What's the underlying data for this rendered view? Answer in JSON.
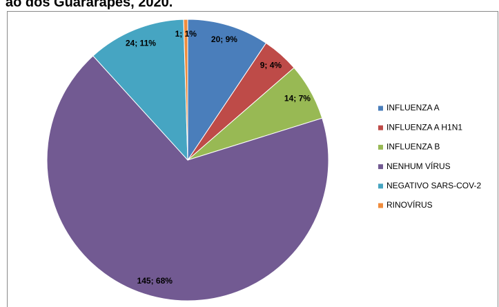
{
  "chart_data": {
    "type": "pie",
    "title": "ão dos Guararapes, 2020.",
    "categories": [
      "INFLUENZA A",
      "INFLUENZA A H1N1",
      "INFLUENZA B",
      "NENHUM VÍRUS",
      "NEGATIVO SARS-COV-2",
      "RINOVÍRUS"
    ],
    "values": [
      20,
      9,
      14,
      145,
      24,
      1
    ],
    "value_labels": [
      "20; 9%",
      "9; 4%",
      "14; 7%",
      "145; 68%",
      "24; 11%",
      "1; 1%"
    ],
    "colors": [
      "#4a7ebb",
      "#be4b48",
      "#98b954",
      "#725a92",
      "#46a5c2",
      "#f08c3c"
    ],
    "legend": "right"
  }
}
